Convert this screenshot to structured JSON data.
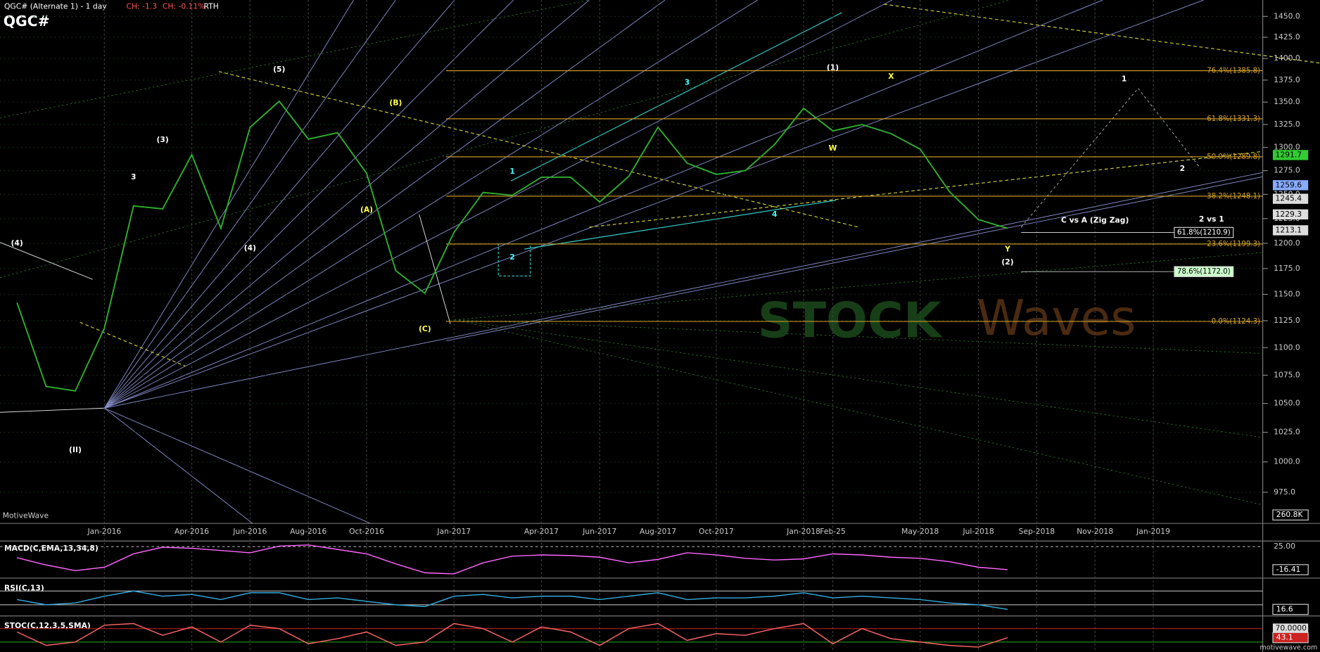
{
  "chart_data": [
    {
      "type": "line",
      "log": true,
      "title": "QGC# (Alternate 1) - 1 day",
      "change": "CH: -1.3",
      "change_pct": "CH: -0.11%",
      "session": "RTH",
      "symbol": "QGC#",
      "x": [
        "Oct-2015",
        "Nov-2015",
        "Dec-2015",
        "Jan-2016",
        "Feb-2016",
        "Mar-2016",
        "Apr-2016",
        "May-2016",
        "Jun-2016",
        "Jul-2016",
        "Aug-2016",
        "Sep-2016",
        "Oct-2016",
        "Nov-2016",
        "Dec-2016",
        "Jan-2017",
        "Feb-2017",
        "Mar-2017",
        "Apr-2017",
        "May-2017",
        "Jun-2017",
        "Jul-2017",
        "Aug-2017",
        "Sep-2017",
        "Oct-2017",
        "Nov-2017",
        "Dec-2017",
        "Jan-2018",
        "Feb-2018",
        "Mar-2018",
        "Apr-2018",
        "May-2018",
        "Jun-2018",
        "Jul-2018",
        "Aug-2018"
      ],
      "series": [
        {
          "name": "QGC#",
          "color": "#2fae2f",
          "values": [
            1142,
            1065,
            1061,
            1118,
            1238,
            1235,
            1292,
            1215,
            1322,
            1351,
            1309,
            1316,
            1272,
            1173,
            1151,
            1211,
            1252,
            1249,
            1268,
            1268,
            1242,
            1269,
            1322,
            1283,
            1271,
            1275,
            1303,
            1343,
            1318,
            1325,
            1315,
            1298,
            1253,
            1224,
            1215
          ]
        }
      ],
      "ylim": [
        950,
        1470
      ],
      "yticks": [
        {
          "value": 975,
          "label": "975.0"
        },
        {
          "value": 1000,
          "label": "1000.0"
        },
        {
          "value": 1025,
          "label": "1025.0"
        },
        {
          "value": 1050,
          "label": "1050.0"
        },
        {
          "value": 1075,
          "label": "1075.0"
        },
        {
          "value": 1100,
          "label": "1100.0"
        },
        {
          "value": 1125,
          "label": "1125.0"
        },
        {
          "value": 1150,
          "label": "1150.0"
        },
        {
          "value": 1175,
          "label": "1175.0"
        },
        {
          "value": 1200,
          "label": "1200.0"
        },
        {
          "value": 1225,
          "label": "1225.0"
        },
        {
          "value": 1250,
          "label": "1250.0"
        },
        {
          "value": 1275,
          "label": "1275.0"
        },
        {
          "value": 1300,
          "label": "1300.0"
        },
        {
          "value": 1325,
          "label": "1325.0"
        },
        {
          "value": 1350,
          "label": "1350.0"
        },
        {
          "value": 1375,
          "label": "1375.0"
        },
        {
          "value": 1400,
          "label": "1400.0"
        },
        {
          "value": 1425,
          "label": "1425.0"
        },
        {
          "value": 1450,
          "label": "1450.0"
        }
      ],
      "xticks": [
        {
          "value": "Jan-2016",
          "label": "Jan-2016"
        },
        {
          "value": "Apr-2016",
          "label": "Apr-2016"
        },
        {
          "value": "Jun-2016",
          "label": "Jun-2016"
        },
        {
          "value": "Aug-2016",
          "label": "Aug-2016"
        },
        {
          "value": "Oct-2016",
          "label": "Oct-2016"
        },
        {
          "value": "Jan-2017",
          "label": "Jan-2017"
        },
        {
          "value": "Apr-2017",
          "label": "Apr-2017"
        },
        {
          "value": "Jun-2017",
          "label": "Jun-2017"
        },
        {
          "value": "Aug-2017",
          "label": "Aug-2017"
        },
        {
          "value": "Oct-2017",
          "label": "Oct-2017"
        },
        {
          "value": "Jan-2018",
          "label": "Jan-2018"
        },
        {
          "value": "Feb-2018",
          "label": "Feb-25"
        },
        {
          "value": "May-2018",
          "label": "May-2018"
        },
        {
          "value": "Jul-2018",
          "label": "Jul-2018"
        },
        {
          "value": "Sep-2018",
          "label": "Sep-2018"
        },
        {
          "value": "Nov-2018",
          "label": "Nov-2018"
        },
        {
          "value": "Jan-2019",
          "label": "Jan-2019"
        }
      ],
      "grid": true,
      "fib_levels": [
        {
          "value": 1385.8,
          "label": "76.4%(1385.8)"
        },
        {
          "value": 1331.3,
          "label": "61.8%(1331.3)"
        },
        {
          "value": 1289.8,
          "label": "50.0%(1289.8)"
        },
        {
          "value": 1248.1,
          "label": "38.2%(1248.1)"
        },
        {
          "value": 1199.3,
          "label": "23.6%(1199.3)"
        },
        {
          "value": 1124.3,
          "label": "0.0%(1124.3)"
        }
      ],
      "projections": [
        {
          "value": 1210.9,
          "label": "61.8%(1210.9)",
          "color": "#ffffff"
        },
        {
          "value": 1172.0,
          "label": "78.6%(1172.0)",
          "color": "#ccffcc"
        }
      ],
      "price_markers": [
        {
          "value": 1291.7,
          "color": "#33cc33"
        },
        {
          "value": 1259.6,
          "color": "#88aaff"
        },
        {
          "value": 1245.4,
          "color": "#dddddd"
        },
        {
          "value": 1229.3,
          "color": "#dddddd"
        },
        {
          "value": 1213.1,
          "color": "#dddddd"
        }
      ],
      "volume_label": {
        "value": 260800,
        "label": "260.8K"
      },
      "annotations": [
        {
          "text": "(4)",
          "x": "Oct-2015",
          "y": 1200,
          "color": "#ffffff"
        },
        {
          "text": "(II)",
          "x": "Dec-2015",
          "y": 1010,
          "color": "#ffffff"
        },
        {
          "text": "3",
          "x": "Feb-2016",
          "y": 1268,
          "color": "#ffffff"
        },
        {
          "text": "(3)",
          "x": "Mar-2016",
          "y": 1308,
          "color": "#ffffff"
        },
        {
          "text": "(4)",
          "x": "Jun-2016",
          "y": 1195,
          "color": "#ffffff"
        },
        {
          "text": "(5)",
          "x": "Jul-2016",
          "y": 1387,
          "color": "#ffffff"
        },
        {
          "text": "(A)",
          "x": "Oct-2016",
          "y": 1234,
          "color": "#ffff44"
        },
        {
          "text": "(B)",
          "x": "Nov-2016",
          "y": 1349,
          "color": "#ffff44"
        },
        {
          "text": "(C)",
          "x": "Dec-2016",
          "y": 1117,
          "color": "#ffff44"
        },
        {
          "text": "1",
          "x": "Mar-2017",
          "y": 1274,
          "color": "#44ffff"
        },
        {
          "text": "2",
          "x": "Mar-2017",
          "y": 1186,
          "color": "#44ffff"
        },
        {
          "text": "3",
          "x": "Sep-2017",
          "y": 1372,
          "color": "#44ffff"
        },
        {
          "text": "4",
          "x": "Dec-2017",
          "y": 1229,
          "color": "#44ffff"
        },
        {
          "text": "(1)",
          "x": "Feb-2018",
          "y": 1389,
          "color": "#ffffff"
        },
        {
          "text": "W",
          "x": "Feb-2018",
          "y": 1299,
          "color": "#ffff44"
        },
        {
          "text": "X",
          "x": "Apr-2018",
          "y": 1379,
          "color": "#ffff44"
        },
        {
          "text": "Y",
          "x": "Aug-2018",
          "y": 1194,
          "color": "#ffff44"
        },
        {
          "text": "(2)",
          "x": "Aug-2018",
          "y": 1181,
          "color": "#ffffff"
        },
        {
          "text": "C vs A (Zig Zag)",
          "x": "Nov-2018",
          "y": 1223,
          "color": "#ffffff"
        },
        {
          "text": "2 vs 1",
          "x": "Mar-2019",
          "y": 1224,
          "color": "#ffffff"
        },
        {
          "text": "1",
          "x": "Dec-2018",
          "y": 1376,
          "color": "#ffffff"
        },
        {
          "text": "2",
          "x": "Feb-2019",
          "y": 1277,
          "color": "#ffffff"
        }
      ],
      "watermark": [
        "STOCK",
        "Waves"
      ],
      "source": "MotiveWave",
      "site": "motivewave.com"
    },
    {
      "type": "line",
      "title": "MACD(C,EMA,13,34,8)",
      "ylim": [
        -30,
        35
      ],
      "yticks": [
        {
          "value": 25,
          "label": "25.00"
        }
      ],
      "series": [
        {
          "name": "MACD",
          "color": "#ff66ff",
          "values": [
            5,
            -8,
            -18,
            -12,
            12,
            24,
            22,
            18,
            14,
            26,
            28,
            20,
            12,
            -6,
            -22,
            -24,
            -4,
            8,
            10,
            9,
            6,
            -4,
            2,
            14,
            10,
            4,
            1,
            3,
            12,
            10,
            6,
            4,
            -2,
            -12,
            -16.41
          ]
        }
      ]
    },
    {
      "type": "line",
      "title": "RSI(C,13)",
      "ylim": [
        0,
        100
      ],
      "levels": [
        70,
        30
      ],
      "series": [
        {
          "name": "RSI",
          "color": "#33aadd",
          "values": [
            45,
            30,
            35,
            55,
            70,
            55,
            60,
            45,
            65,
            65,
            45,
            50,
            40,
            30,
            25,
            55,
            60,
            50,
            55,
            55,
            45,
            55,
            65,
            45,
            50,
            50,
            55,
            65,
            50,
            55,
            50,
            45,
            35,
            30,
            16.6
          ]
        }
      ]
    },
    {
      "type": "line",
      "title": "STOC(C,12,3,5,SMA)",
      "ylim": [
        0,
        100
      ],
      "levels": [
        {
          "value": 70,
          "label": "70.0000"
        },
        30
      ],
      "series": [
        {
          "name": "STOC",
          "color": "#ff6666",
          "values": [
            60,
            20,
            30,
            80,
            85,
            50,
            75,
            30,
            80,
            70,
            25,
            40,
            60,
            20,
            30,
            85,
            70,
            30,
            75,
            60,
            20,
            70,
            85,
            35,
            55,
            50,
            70,
            85,
            25,
            70,
            40,
            30,
            20,
            15,
            43.1
          ]
        }
      ]
    }
  ]
}
